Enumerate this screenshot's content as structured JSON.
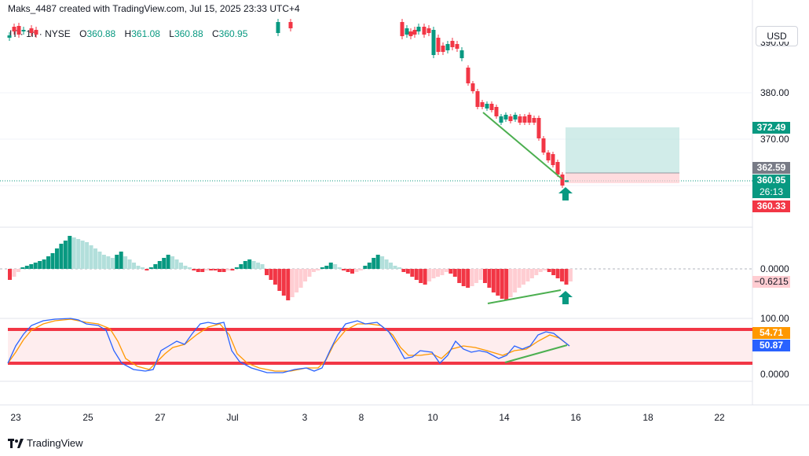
{
  "header": {
    "text": "Maks_4487 created with TradingView.com, Jul 15, 2025 23:33 UTC+4"
  },
  "legend": {
    "symbol": "IT · 1h · NYSE",
    "open_label": "O",
    "open": "360.88",
    "high_label": "H",
    "high": "361.08",
    "low_label": "L",
    "low": "360.88",
    "close_label": "C",
    "close": "360.95"
  },
  "currency_button": "USD",
  "price_axis": {
    "top_label": "390.00",
    "labels": [
      "380.00",
      "370.00"
    ]
  },
  "price_badges": {
    "target": "372.49",
    "entry": "362.59",
    "current": "360.95",
    "countdown": "26:13",
    "stop": "360.33"
  },
  "macd_axis": {
    "zero_label": "0.0000",
    "value_label": "−0.6215"
  },
  "stoch_axis": {
    "upper": "100.00",
    "lower": "0.0000",
    "k_value": "54.71",
    "d_value": "50.87"
  },
  "x_axis": {
    "labels": [
      "23",
      "25",
      "27",
      "Jul",
      "3",
      "8",
      "10",
      "14",
      "16",
      "18",
      "22"
    ]
  },
  "footer": {
    "brand": "TradingView",
    "logo_icon": "tradingview-logo-icon"
  },
  "colors": {
    "up": "#089981",
    "down": "#f23645",
    "macd_up_light": "#b2dfdb",
    "macd_down_light": "#ffcdd2",
    "stoch_k": "#2962ff",
    "stoch_d": "#ff9800",
    "divergence": "#4caf50",
    "band": "#f23645"
  },
  "chart_data": [
    {
      "type": "candlestick",
      "y_unit": "USD",
      "ylim": [
        355,
        392
      ],
      "candles": [
        {
          "o": 371.5,
          "c": 368.5
        },
        {
          "o": 368.5,
          "c": 366.8
        },
        {
          "o": 366.8,
          "c": 363.2
        },
        {
          "o": 363.2,
          "c": 363.8
        },
        {
          "o": 363.8,
          "c": 361.6
        },
        {
          "o": 361.6,
          "c": 360.9
        },
        {
          "o": 360.9,
          "c": 360.95
        }
      ],
      "trade_box": {
        "target": 372.49,
        "entry": 362.59,
        "stop": 360.33
      }
    },
    {
      "type": "bar",
      "title": "MACD histogram",
      "ylim": [
        -7,
        7
      ],
      "last_value": -0.6215
    },
    {
      "type": "line",
      "title": "Stochastic",
      "ylim": [
        0,
        100
      ],
      "bands": [
        80,
        20
      ],
      "k_last": 54.71,
      "d_last": 50.87
    }
  ]
}
